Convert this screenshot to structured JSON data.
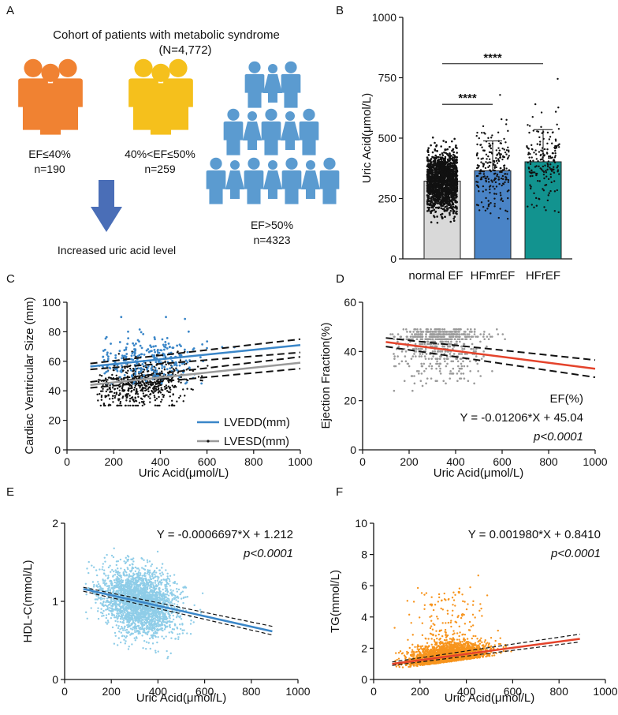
{
  "panel_labels": [
    "A",
    "B",
    "C",
    "D",
    "E",
    "F"
  ],
  "cohort": {
    "title": "Cohort of patients with metabolic syndrome",
    "count": "(N=4,772)",
    "groups": [
      {
        "label": "EF≤40%",
        "n": "n=190",
        "color": "#f08232"
      },
      {
        "label": "40%<EF≤50%",
        "n": "n=259",
        "color": "#f5c01c"
      },
      {
        "label": "EF>50%",
        "n": "n=4323",
        "color": "#5b9bd0"
      }
    ],
    "arrow_caption": "Increased uric acid level",
    "arrow_color": "#4a6eb7"
  },
  "chart_data": [
    {
      "panel": "B",
      "type": "bar",
      "ylabel": "Uric Acid(μmol/L)",
      "ylim": [
        0,
        1000
      ],
      "yticks": [
        0,
        250,
        500,
        750,
        1000
      ],
      "categories": [
        "normal EF",
        "HFmrEF",
        "HFrEF"
      ],
      "values": [
        322,
        365,
        402
      ],
      "sd_upper": [
        395,
        488,
        535
      ],
      "colors": [
        "#d9d9d9",
        "#4a84c7",
        "#12938f"
      ],
      "significance": [
        {
          "from": "normal EF",
          "to": "HFmrEF",
          "y": 640,
          "label": "****"
        },
        {
          "from": "normal EF",
          "to": "HFrEF",
          "y": 808,
          "label": "****"
        }
      ]
    },
    {
      "panel": "C",
      "type": "scatter",
      "xlabel": "Uric Acid(μmol/L)",
      "ylabel": "Cardiac Ventricular Size (mm)",
      "xlim": [
        0,
        1000
      ],
      "ylim": [
        0,
        100
      ],
      "xticks": [
        0,
        200,
        400,
        600,
        800,
        1000
      ],
      "yticks": [
        0,
        20,
        40,
        60,
        80,
        100
      ],
      "series": [
        {
          "name": "LVEDD(mm)",
          "color": "#3a86c8",
          "fit": [
            [
              100,
              56.5
            ],
            [
              1000,
              71
            ]
          ],
          "ci_lo": [
            [
              100,
              54.5
            ],
            [
              1000,
              66
            ]
          ],
          "ci_hi": [
            [
              100,
              58.5
            ],
            [
              1000,
              75
            ]
          ]
        },
        {
          "name": "LVESD(mm)",
          "color": "#9a9a9a",
          "fit": [
            [
              100,
              44
            ],
            [
              1000,
              59
            ]
          ],
          "ci_lo": [
            [
              100,
              42
            ],
            [
              1000,
              55
            ]
          ],
          "ci_hi": [
            [
              100,
              46
            ],
            [
              1000,
              63
            ]
          ]
        }
      ],
      "legend_position": "bottom-right"
    },
    {
      "panel": "D",
      "type": "scatter",
      "xlabel": "Uric  Acid(μmol/L)",
      "ylabel": "Ejection Fraction(%)",
      "xlim": [
        0,
        1000
      ],
      "ylim": [
        0,
        60
      ],
      "xticks": [
        0,
        200,
        400,
        600,
        800,
        1000
      ],
      "yticks": [
        0,
        20,
        40,
        60
      ],
      "fit": {
        "intercept": 45.04,
        "slope": -0.01206
      },
      "ci_lo": [
        [
          100,
          42
        ],
        [
          1000,
          29.5
        ]
      ],
      "ci_hi": [
        [
          100,
          45.5
        ],
        [
          1000,
          36.5
        ]
      ],
      "fit_color": "#e4432b",
      "series_label": "EF(%)",
      "equation": "Y = -0.01206*X + 45.04",
      "p_value": "p<0.0001"
    },
    {
      "panel": "E",
      "type": "scatter",
      "xlabel": "Uric Acid(μmol/L)",
      "ylabel": "HDL-C(mmol/L)",
      "xlim": [
        0,
        1000
      ],
      "ylim": [
        0,
        2
      ],
      "xticks": [
        0,
        200,
        400,
        600,
        800,
        1000
      ],
      "yticks": [
        0,
        1,
        2
      ],
      "fit": {
        "intercept": 1.212,
        "slope": -0.0006697
      },
      "fit_range": [
        80,
        890
      ],
      "ci_lo": [
        [
          80,
          1.13
        ],
        [
          890,
          0.57
        ]
      ],
      "ci_hi": [
        [
          80,
          1.18
        ],
        [
          890,
          0.68
        ]
      ],
      "point_color": "#8fcde8",
      "fit_color": "#3a86c8",
      "equation": "Y = -0.0006697*X + 1.212",
      "p_value": "p<0.0001"
    },
    {
      "panel": "F",
      "type": "scatter",
      "xlabel": "Uric Acid(μmol/L)",
      "ylabel": "TG(mmol/L)",
      "xlim": [
        0,
        1000
      ],
      "ylim": [
        0,
        10
      ],
      "xticks": [
        0,
        200,
        400,
        600,
        800,
        1000
      ],
      "yticks": [
        0,
        2,
        4,
        6,
        8,
        10
      ],
      "fit": {
        "intercept": 0.841,
        "slope": 0.00198
      },
      "fit_range": [
        80,
        890
      ],
      "ci_lo": [
        [
          80,
          0.9
        ],
        [
          890,
          2.4
        ]
      ],
      "ci_hi": [
        [
          80,
          1.12
        ],
        [
          890,
          2.9
        ]
      ],
      "point_color": "#f7941d",
      "fit_color": "#e4432b",
      "equation": "Y = 0.001980*X + 0.8410",
      "p_value": "p<0.0001"
    }
  ]
}
